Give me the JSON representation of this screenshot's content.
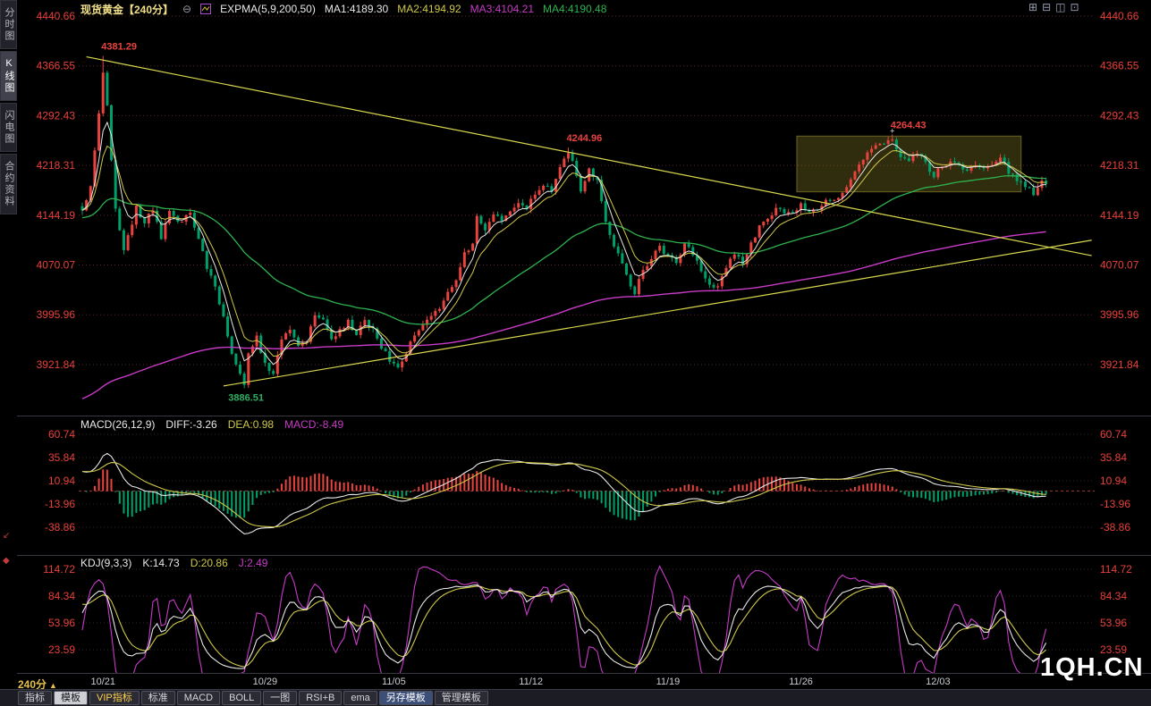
{
  "header": {
    "title": "现货黄金【240分】",
    "collapse_glyph": "⊖",
    "expma": "EXPMA(5,9,200,50)",
    "ma1": "MA1:4189.30",
    "ma2": "MA2:4194.92",
    "ma3": "MA3:4104.21",
    "ma4": "MA4:4190.48"
  },
  "macd_header": {
    "name": "MACD(26,12,9)",
    "diff": "DIFF:-3.26",
    "dea": "DEA:0.98",
    "macd": "MACD:-8.49"
  },
  "kdj_header": {
    "name": "KDJ(9,3,3)",
    "k": "K:14.73",
    "d": "D:20.86",
    "j": "J:2.49"
  },
  "period": {
    "label": "240分",
    "arrow": "▲"
  },
  "watermark": "1QH.CN",
  "window_icons": [
    {
      "name": "layout-grid-icon",
      "glyph": "⊞"
    },
    {
      "name": "layout-split-icon",
      "glyph": "⊟"
    },
    {
      "name": "layout-columns-icon",
      "glyph": "◫"
    },
    {
      "name": "layout-single-icon",
      "glyph": "⊡"
    }
  ],
  "sidebar": {
    "tabs": [
      {
        "name": "time-share",
        "label": "分时图",
        "selected": false
      },
      {
        "name": "kline",
        "label": "K线图",
        "selected": true
      },
      {
        "name": "lightning",
        "label": "闪电图",
        "selected": false
      },
      {
        "name": "contract-info",
        "label": "合约资料",
        "selected": false
      }
    ]
  },
  "toolbar": [
    {
      "name": "indicators",
      "label": "指标"
    },
    {
      "name": "template",
      "label": "模板",
      "selected": true
    },
    {
      "name": "vip-indicators",
      "label": "VIP指标",
      "accent": "yellow"
    },
    {
      "name": "standard",
      "label": "标准"
    },
    {
      "name": "macd",
      "label": "MACD"
    },
    {
      "name": "boll",
      "label": "BOLL"
    },
    {
      "name": "one-chart",
      "label": "一图"
    },
    {
      "name": "rsi-b",
      "label": "RSI+B"
    },
    {
      "name": "ema",
      "label": "ema"
    },
    {
      "name": "save-template",
      "label": "另存模板",
      "accent": "blue"
    },
    {
      "name": "manage-template",
      "label": "管理模板"
    }
  ],
  "chart_data": {
    "type": "candlestick",
    "instrument": "现货黄金",
    "timeframe": "240分",
    "bars": 233,
    "price_axis": [
      "4440.66",
      "4366.55",
      "4292.43",
      "4218.31",
      "4144.19",
      "4070.07",
      "3995.96",
      "3921.84"
    ],
    "macd_axis": [
      "60.74",
      "35.84",
      "10.94",
      "-13.96",
      "-38.86"
    ],
    "kdj_axis": [
      "114.72",
      "84.34",
      "53.96",
      "23.59"
    ],
    "date_ticks": [
      {
        "bar": 5,
        "label": "10/21"
      },
      {
        "bar": 44,
        "label": "10/29"
      },
      {
        "bar": 75,
        "label": "11/05"
      },
      {
        "bar": 108,
        "label": "11/12"
      },
      {
        "bar": 141,
        "label": "11/19"
      },
      {
        "bar": 173,
        "label": "11/26"
      },
      {
        "bar": 206,
        "label": "12/03"
      }
    ],
    "annotations": [
      {
        "bar": 5,
        "price": 4381.29,
        "label": "4381.29",
        "color": "#e8433e",
        "side": "above"
      },
      {
        "bar": 117,
        "price": 4244.96,
        "label": "4244.96",
        "color": "#e8433e",
        "side": "above"
      },
      {
        "bar": 195,
        "price": 4264.43,
        "label": "4264.43",
        "color": "#e8433e",
        "side": "above",
        "cross": true
      },
      {
        "bar": 39,
        "price": 3886.51,
        "label": "3886.51",
        "color": "#2fae63",
        "side": "below"
      }
    ],
    "trendlines": [
      {
        "b1": 1,
        "p1": 4380,
        "b2": 243,
        "p2": 4084
      },
      {
        "b1": 34,
        "p1": 3890,
        "b2": 243,
        "p2": 4107
      }
    ],
    "highlight_box": {
      "b1": 172,
      "p1": 4179,
      "b2": 226,
      "p2": 4262
    },
    "indicators": {
      "expma_periods": [
        5,
        9,
        200,
        50
      ],
      "macd_params": [
        26,
        12,
        9
      ],
      "kdj_params": [
        9,
        3,
        3
      ],
      "values": {
        "ma1": 4189.3,
        "ma2": 4194.92,
        "ma3": 4104.21,
        "ma4": 4190.48,
        "diff": -3.26,
        "dea": 0.98,
        "macd": -8.49,
        "k": 14.73,
        "d": 20.86,
        "j": 2.49
      }
    },
    "price_path": [
      [
        0,
        4155
      ],
      [
        2,
        4185
      ],
      [
        4,
        4300
      ],
      [
        5,
        4355
      ],
      [
        6,
        4310
      ],
      [
        8,
        4150
      ],
      [
        10,
        4090
      ],
      [
        13,
        4155
      ],
      [
        15,
        4130
      ],
      [
        17,
        4155
      ],
      [
        19,
        4110
      ],
      [
        21,
        4150
      ],
      [
        23,
        4135
      ],
      [
        26,
        4145
      ],
      [
        28,
        4110
      ],
      [
        30,
        4065
      ],
      [
        32,
        4040
      ],
      [
        34,
        3990
      ],
      [
        36,
        3940
      ],
      [
        38,
        3905
      ],
      [
        39,
        3890
      ],
      [
        40,
        3940
      ],
      [
        42,
        3965
      ],
      [
        44,
        3920
      ],
      [
        46,
        3905
      ],
      [
        48,
        3960
      ],
      [
        50,
        3975
      ],
      [
        52,
        3950
      ],
      [
        54,
        3960
      ],
      [
        56,
        3995
      ],
      [
        58,
        3990
      ],
      [
        60,
        3960
      ],
      [
        62,
        3975
      ],
      [
        64,
        3985
      ],
      [
        66,
        3965
      ],
      [
        68,
        3990
      ],
      [
        70,
        3975
      ],
      [
        72,
        3950
      ],
      [
        74,
        3930
      ],
      [
        76,
        3915
      ],
      [
        78,
        3940
      ],
      [
        80,
        3965
      ],
      [
        82,
        3980
      ],
      [
        84,
        3990
      ],
      [
        86,
        4005
      ],
      [
        88,
        4030
      ],
      [
        90,
        4045
      ],
      [
        92,
        4085
      ],
      [
        94,
        4105
      ],
      [
        95,
        4140
      ],
      [
        97,
        4125
      ],
      [
        99,
        4145
      ],
      [
        101,
        4135
      ],
      [
        103,
        4150
      ],
      [
        105,
        4160
      ],
      [
        107,
        4155
      ],
      [
        109,
        4175
      ],
      [
        111,
        4190
      ],
      [
        113,
        4180
      ],
      [
        115,
        4220
      ],
      [
        117,
        4238
      ],
      [
        118,
        4225
      ],
      [
        120,
        4180
      ],
      [
        122,
        4210
      ],
      [
        124,
        4195
      ],
      [
        126,
        4130
      ],
      [
        128,
        4095
      ],
      [
        130,
        4075
      ],
      [
        132,
        4040
      ],
      [
        133,
        4030
      ],
      [
        135,
        4060
      ],
      [
        137,
        4080
      ],
      [
        139,
        4095
      ],
      [
        141,
        4085
      ],
      [
        143,
        4075
      ],
      [
        145,
        4100
      ],
      [
        147,
        4085
      ],
      [
        149,
        4060
      ],
      [
        151,
        4040
      ],
      [
        153,
        4035
      ],
      [
        155,
        4070
      ],
      [
        157,
        4090
      ],
      [
        159,
        4075
      ],
      [
        161,
        4100
      ],
      [
        163,
        4125
      ],
      [
        165,
        4140
      ],
      [
        167,
        4155
      ],
      [
        169,
        4145
      ],
      [
        171,
        4150
      ],
      [
        173,
        4160
      ],
      [
        175,
        4145
      ],
      [
        177,
        4155
      ],
      [
        179,
        4170
      ],
      [
        181,
        4165
      ],
      [
        183,
        4180
      ],
      [
        185,
        4195
      ],
      [
        187,
        4220
      ],
      [
        189,
        4235
      ],
      [
        191,
        4245
      ],
      [
        193,
        4250
      ],
      [
        195,
        4258
      ],
      [
        197,
        4230
      ],
      [
        199,
        4225
      ],
      [
        201,
        4235
      ],
      [
        203,
        4220
      ],
      [
        205,
        4205
      ],
      [
        207,
        4215
      ],
      [
        209,
        4225
      ],
      [
        211,
        4218
      ],
      [
        213,
        4212
      ],
      [
        215,
        4218
      ],
      [
        217,
        4212
      ],
      [
        219,
        4220
      ],
      [
        221,
        4228
      ],
      [
        223,
        4210
      ],
      [
        225,
        4195
      ],
      [
        227,
        4185
      ],
      [
        229,
        4178
      ],
      [
        231,
        4192
      ],
      [
        232,
        4189
      ]
    ],
    "colors": {
      "up": "#e8433e",
      "down": "#00a06a",
      "ma1": "#e8e8e8",
      "ma2": "#cfc84a",
      "ma3": "#c73bc7",
      "ma4": "#2eb24e",
      "trendline": "#d8d84e",
      "axis_text": "#e8403a",
      "grid": "#55262a"
    }
  }
}
